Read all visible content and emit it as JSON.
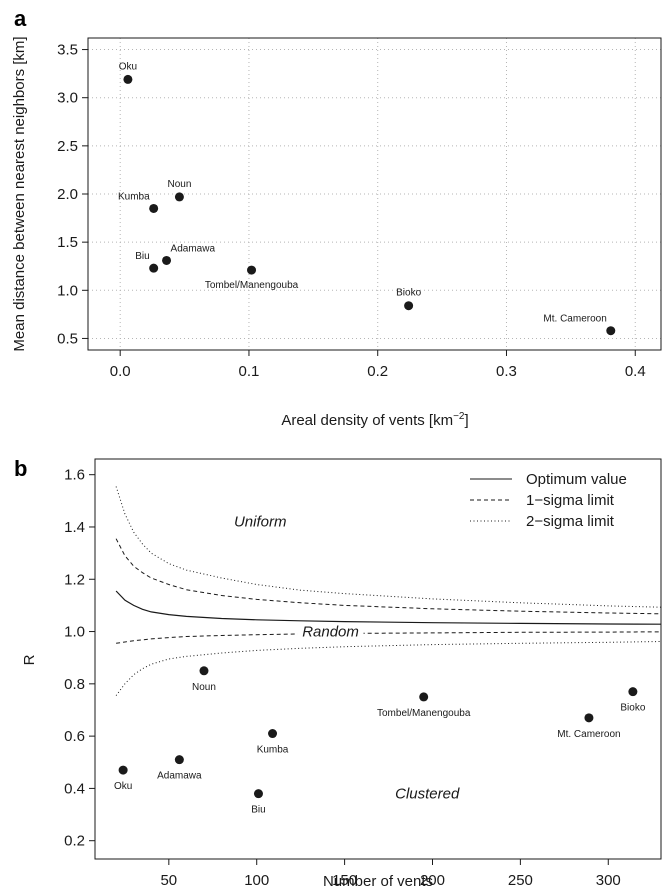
{
  "chart_data": [
    {
      "panel": "a",
      "type": "scatter",
      "xlabel": "Areal density of vents [km",
      "xlabel_sup": "−2",
      "xlabel_end": "]",
      "ylabel": "Mean distance between nearest neighbors [km]",
      "xlim": [
        -0.025,
        0.42
      ],
      "ylim": [
        0.38,
        3.62
      ],
      "xticks": [
        0.0,
        0.1,
        0.2,
        0.3,
        0.4
      ],
      "xtick_labels": [
        "0.0",
        "0.1",
        "0.2",
        "0.3",
        "0.4"
      ],
      "yticks": [
        0.5,
        1.0,
        1.5,
        2.0,
        2.5,
        3.0,
        3.5
      ],
      "ytick_labels": [
        "0.5",
        "1.0",
        "1.5",
        "2.0",
        "2.5",
        "3.0",
        "3.5"
      ],
      "grid": true,
      "points": [
        {
          "name": "Oku",
          "x": 0.006,
          "y": 3.19,
          "label_pos": "above"
        },
        {
          "name": "Kumba",
          "x": 0.026,
          "y": 1.85,
          "label_pos": "above-left"
        },
        {
          "name": "Noun",
          "x": 0.046,
          "y": 1.97,
          "label_pos": "above"
        },
        {
          "name": "Biu",
          "x": 0.026,
          "y": 1.23,
          "label_pos": "above-left"
        },
        {
          "name": "Adamawa",
          "x": 0.036,
          "y": 1.31,
          "label_pos": "above-right"
        },
        {
          "name": "Tombel/Manengouba",
          "x": 0.102,
          "y": 1.21,
          "label_pos": "below"
        },
        {
          "name": "Bioko",
          "x": 0.224,
          "y": 0.84,
          "label_pos": "above"
        },
        {
          "name": "Mt. Cameroon",
          "x": 0.381,
          "y": 0.58,
          "label_pos": "above-left"
        }
      ]
    },
    {
      "panel": "b",
      "type": "scatter",
      "xlabel": "Number of vents",
      "ylabel": "R",
      "xlim": [
        8,
        330
      ],
      "ylim": [
        0.13,
        1.66
      ],
      "xticks": [
        50,
        100,
        150,
        200,
        250,
        300
      ],
      "xtick_labels": [
        "50",
        "100",
        "150",
        "200",
        "250",
        "300"
      ],
      "yticks": [
        0.2,
        0.4,
        0.6,
        0.8,
        1.0,
        1.2,
        1.4,
        1.6
      ],
      "ytick_labels": [
        "0.2",
        "0.4",
        "0.6",
        "0.8",
        "1.0",
        "1.2",
        "1.4",
        "1.6"
      ],
      "grid": false,
      "legend": {
        "placement": "top-right",
        "entries": [
          {
            "label": "Optimum value",
            "style": "solid"
          },
          {
            "label": "1−sigma limit",
            "style": "dashed"
          },
          {
            "label": "2−sigma limit",
            "style": "dotted"
          }
        ]
      },
      "region_labels": [
        {
          "text": "Uniform",
          "x": 102,
          "y": 1.42
        },
        {
          "text": "Random",
          "x": 142,
          "y": 1.0
        },
        {
          "text": "Clustered",
          "x": 197,
          "y": 0.38
        }
      ],
      "curves": {
        "x": [
          20,
          25,
          30,
          35,
          40,
          50,
          60,
          80,
          100,
          125,
          150,
          200,
          250,
          300,
          330
        ],
        "optimum": [
          1.155,
          1.12,
          1.1,
          1.085,
          1.075,
          1.065,
          1.058,
          1.05,
          1.045,
          1.041,
          1.038,
          1.034,
          1.031,
          1.029,
          1.028
        ],
        "sigma1_upper": [
          1.355,
          1.29,
          1.25,
          1.225,
          1.205,
          1.18,
          1.16,
          1.138,
          1.123,
          1.11,
          1.1,
          1.087,
          1.078,
          1.071,
          1.068
        ],
        "sigma1_lower": [
          0.955,
          0.96,
          0.965,
          0.968,
          0.972,
          0.977,
          0.981,
          0.985,
          0.988,
          0.991,
          0.993,
          0.995,
          0.997,
          0.998,
          0.999
        ],
        "sigma2_upper": [
          1.555,
          1.45,
          1.38,
          1.335,
          1.3,
          1.26,
          1.235,
          1.205,
          1.18,
          1.158,
          1.145,
          1.125,
          1.11,
          1.098,
          1.093
        ],
        "sigma2_lower": [
          0.755,
          0.8,
          0.835,
          0.858,
          0.875,
          0.895,
          0.905,
          0.918,
          0.928,
          0.936,
          0.942,
          0.95,
          0.955,
          0.959,
          0.962
        ]
      },
      "points": [
        {
          "name": "Oku",
          "x": 24,
          "y": 0.47,
          "label_pos": "below"
        },
        {
          "name": "Adamawa",
          "x": 56,
          "y": 0.51,
          "label_pos": "below"
        },
        {
          "name": "Noun",
          "x": 70,
          "y": 0.85,
          "label_pos": "below"
        },
        {
          "name": "Biu",
          "x": 101,
          "y": 0.38,
          "label_pos": "below"
        },
        {
          "name": "Kumba",
          "x": 109,
          "y": 0.61,
          "label_pos": "below"
        },
        {
          "name": "Tombel/Manengouba",
          "x": 195,
          "y": 0.75,
          "label_pos": "below"
        },
        {
          "name": "Mt. Cameroon",
          "x": 289,
          "y": 0.67,
          "label_pos": "below"
        },
        {
          "name": "Bioko",
          "x": 314,
          "y": 0.77,
          "label_pos": "below"
        }
      ]
    }
  ]
}
